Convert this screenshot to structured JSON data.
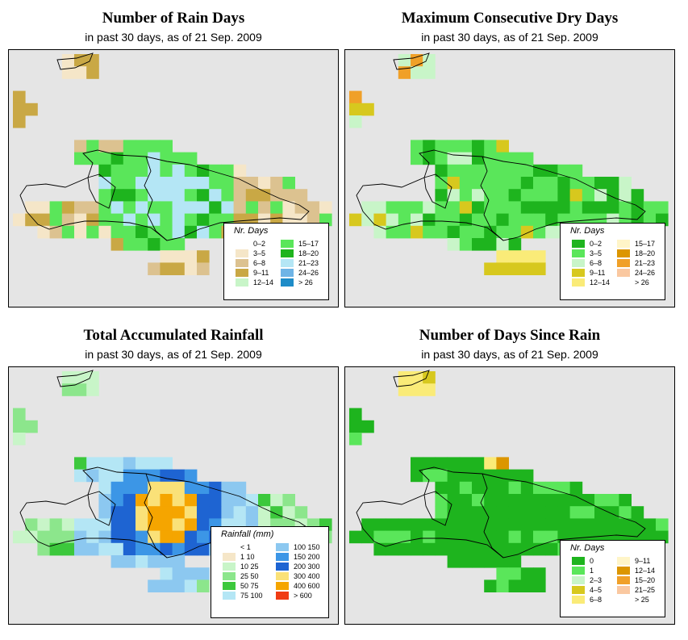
{
  "panels": [
    {
      "id": "rain-days",
      "title": "Number of Rain Days",
      "subtitle": "in past 30 days, as of  21 Sep. 2009",
      "legend": {
        "title": "Nr. Days",
        "items": [
          {
            "label": "0–2",
            "color": "#ffffff"
          },
          {
            "label": "3–5",
            "color": "#f5e6c8"
          },
          {
            "label": "6–8",
            "color": "#dcc290"
          },
          {
            "label": "9–11",
            "color": "#c9a845"
          },
          {
            "label": "12–14",
            "color": "#c8f5c8"
          },
          {
            "label": "15–17",
            "color": "#5ae65a"
          },
          {
            "label": "18–20",
            "color": "#1eb41e"
          },
          {
            "label": "21–23",
            "color": "#b4e6f5"
          },
          {
            "label": "24–26",
            "color": "#6eb4e6"
          },
          {
            "label": "> 26",
            "color": "#1e8cc8"
          }
        ]
      }
    },
    {
      "id": "dry-days",
      "title": "Maximum Consecutive Dry Days",
      "subtitle": "in past 30 days, as of  21 Sep. 2009",
      "legend": {
        "title": "Nr. Days",
        "items": [
          {
            "label": "0–2",
            "color": "#1eb41e"
          },
          {
            "label": "3–5",
            "color": "#5ae65a"
          },
          {
            "label": "6–8",
            "color": "#c8f5c8"
          },
          {
            "label": "9–11",
            "color": "#d7c81e"
          },
          {
            "label": "12–14",
            "color": "#faeb78"
          },
          {
            "label": "15–17",
            "color": "#fff5c8"
          },
          {
            "label": "18–20",
            "color": "#dc9600"
          },
          {
            "label": "21–23",
            "color": "#f0a028"
          },
          {
            "label": "24–26",
            "color": "#fac8a0"
          },
          {
            "label": "> 26",
            "color": "#ffffff"
          }
        ]
      }
    },
    {
      "id": "rainfall",
      "title": "Total Accumulated Rainfall",
      "subtitle": "in past 30 days, as of  21 Sep. 2009",
      "legend": {
        "title": "Rainfall (mm)",
        "items": [
          {
            "label": "< 1",
            "color": "#ffffff"
          },
          {
            "label": "1    10",
            "color": "#f5e6c8"
          },
          {
            "label": "10    25",
            "color": "#c8f5c8"
          },
          {
            "label": "25    50",
            "color": "#8ce68c"
          },
          {
            "label": "50    75",
            "color": "#3cc83c"
          },
          {
            "label": "75  100",
            "color": "#b4e6f5"
          },
          {
            "label": "100  150",
            "color": "#8cc8f0"
          },
          {
            "label": "150  200",
            "color": "#3c96e6"
          },
          {
            "label": "200  300",
            "color": "#1e64d2"
          },
          {
            "label": "300  400",
            "color": "#fae178"
          },
          {
            "label": "400  600",
            "color": "#f5a500"
          },
          {
            "label": "> 600",
            "color": "#f03c14"
          }
        ]
      }
    },
    {
      "id": "days-since-rain",
      "title": "Number of Days Since Rain",
      "subtitle": "in past 30 days, as of  21 Sep. 2009",
      "legend": {
        "title": "Nr. Days",
        "items": [
          {
            "label": "0",
            "color": "#1eb41e"
          },
          {
            "label": "1",
            "color": "#5ae65a"
          },
          {
            "label": "2–3",
            "color": "#c8f5c8"
          },
          {
            "label": "4–5",
            "color": "#d7c81e"
          },
          {
            "label": "6–8",
            "color": "#faeb78"
          },
          {
            "label": "9–11",
            "color": "#fff5c8"
          },
          {
            "label": "12–14",
            "color": "#dc9600"
          },
          {
            "label": "15–20",
            "color": "#f0a028"
          },
          {
            "label": "21–25",
            "color": "#fac8a0"
          },
          {
            "label": "> 25",
            "color": "#ffffff"
          }
        ]
      }
    }
  ]
}
